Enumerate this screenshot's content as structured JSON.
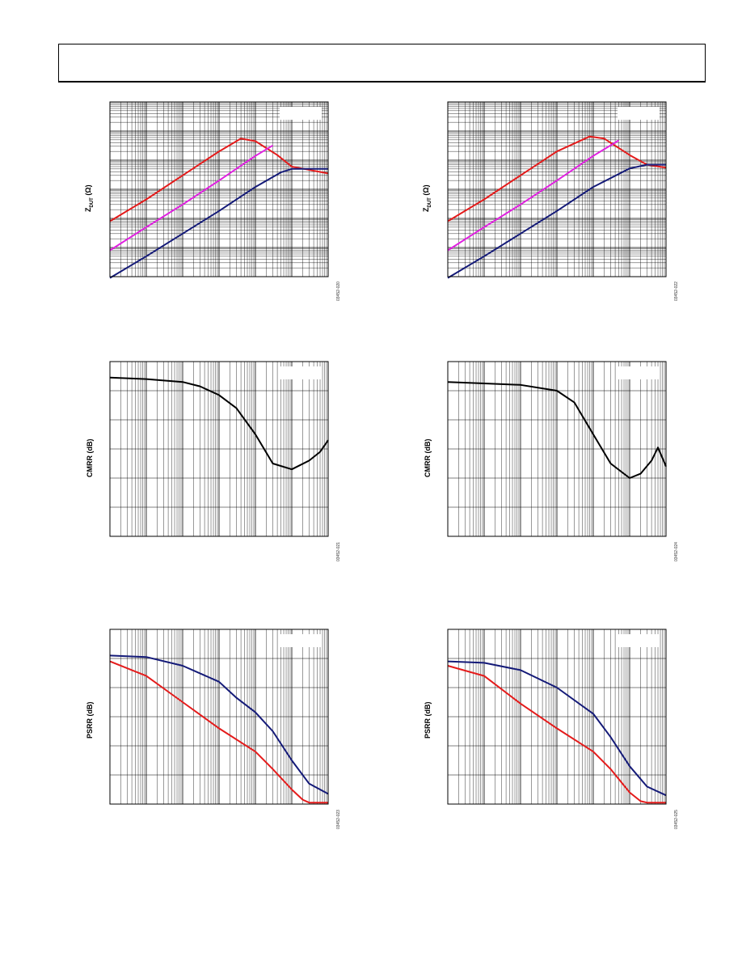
{
  "charts": [
    {
      "id": "zdut-left",
      "ylabel_main": "Z",
      "ylabel_sub": "DUT",
      "ylabel_unit": "(Ω)",
      "fig_id": "03452-020",
      "chart_data": {
        "type": "line",
        "xscale": "log",
        "yscale": "log",
        "xlim": [
          1,
          1000000
        ],
        "ylim": [
          0.1,
          100000
        ],
        "grid": true,
        "series": [
          {
            "color": "#e41b1b",
            "x": [
              1,
              10,
              100,
              1000,
              4000,
              10000,
              40000,
              100000,
              1000000
            ],
            "y": [
              8,
              45,
              300,
              2000,
              5500,
              4500,
              1500,
              600,
              350
            ]
          },
          {
            "color": "#e020e0",
            "x": [
              1,
              10,
              100,
              1000,
              10000,
              30000
            ],
            "y": [
              0.8,
              5,
              30,
              200,
              1400,
              3200
            ]
          },
          {
            "color": "#141a78",
            "x": [
              1,
              10,
              100,
              1000,
              10000,
              50000,
              100000,
              1000000
            ],
            "y": [
              0.09,
              0.5,
              3,
              18,
              120,
              380,
              500,
              500
            ]
          }
        ]
      }
    },
    {
      "id": "zdut-right",
      "ylabel_main": "Z",
      "ylabel_sub": "DUT",
      "ylabel_unit": "(Ω)",
      "fig_id": "03452-022",
      "chart_data": {
        "type": "line",
        "xscale": "log",
        "yscale": "log",
        "xlim": [
          1,
          1000000
        ],
        "ylim": [
          0.1,
          100000
        ],
        "grid": true,
        "series": [
          {
            "color": "#e41b1b",
            "x": [
              1,
              10,
              100,
              1000,
              8000,
              20000,
              100000,
              300000,
              1000000
            ],
            "y": [
              8,
              45,
              300,
              2000,
              6500,
              5500,
              1500,
              700,
              550
            ]
          },
          {
            "color": "#e020e0",
            "x": [
              1,
              10,
              100,
              1000,
              10000,
              50000
            ],
            "y": [
              0.8,
              5,
              30,
              200,
              1400,
              4800
            ]
          },
          {
            "color": "#141a78",
            "x": [
              1,
              10,
              100,
              1000,
              10000,
              100000,
              300000,
              1000000
            ],
            "y": [
              0.09,
              0.5,
              3,
              18,
              120,
              520,
              700,
              700
            ]
          }
        ]
      }
    },
    {
      "id": "cmrr-left",
      "ylabel_main": "CMRR (dB)",
      "ylabel_sub": "",
      "ylabel_unit": "",
      "fig_id": "03452-021",
      "chart_data": {
        "type": "line",
        "xscale": "log",
        "yscale": "linear",
        "xlim": [
          1,
          1000000
        ],
        "ylim": [
          0,
          120
        ],
        "grid": true,
        "series": [
          {
            "color": "#000000",
            "x": [
              1,
              10,
              100,
              300,
              1000,
              3000,
              10000,
              30000,
              100000,
              300000,
              600000,
              1000000
            ],
            "y": [
              109,
              108,
              106,
              103,
              97,
              88,
              70,
              50,
              46,
              52,
              58,
              66
            ]
          }
        ]
      }
    },
    {
      "id": "cmrr-right",
      "ylabel_main": "CMRR (dB)",
      "ylabel_sub": "",
      "ylabel_unit": "",
      "fig_id": "03452-024",
      "chart_data": {
        "type": "line",
        "xscale": "log",
        "yscale": "linear",
        "xlim": [
          1,
          1000000
        ],
        "ylim": [
          0,
          120
        ],
        "grid": true,
        "series": [
          {
            "color": "#000000",
            "x": [
              1,
              10,
              100,
              1000,
              3000,
              10000,
              30000,
              100000,
              200000,
              400000,
              600000,
              1000000
            ],
            "y": [
              106,
              105,
              104,
              100,
              92,
              70,
              50,
              40,
              43,
              52,
              61,
              48
            ]
          }
        ]
      }
    },
    {
      "id": "psrr-left",
      "ylabel_main": "PSRR (dB)",
      "ylabel_sub": "",
      "ylabel_unit": "",
      "fig_id": "03452-023",
      "chart_data": {
        "type": "line",
        "xscale": "log",
        "yscale": "linear",
        "xlim": [
          1,
          1000000
        ],
        "ylim": [
          0,
          120
        ],
        "grid": true,
        "series": [
          {
            "color": "#141a78",
            "x": [
              1,
              10,
              100,
              1000,
              3000,
              10000,
              30000,
              100000,
              300000,
              1000000
            ],
            "y": [
              102,
              101,
              95,
              84,
              73,
              63,
              50,
              30,
              14,
              7
            ]
          },
          {
            "color": "#e41b1b",
            "x": [
              1,
              10,
              100,
              1000,
              10000,
              30000,
              100000,
              200000,
              300000,
              1000000
            ],
            "y": [
              98,
              88,
              70,
              52,
              36,
              24,
              10,
              3,
              1,
              1
            ]
          }
        ]
      }
    },
    {
      "id": "psrr-right",
      "ylabel_main": "PSRR (dB)",
      "ylabel_sub": "",
      "ylabel_unit": "",
      "fig_id": "03452-025",
      "chart_data": {
        "type": "line",
        "xscale": "log",
        "yscale": "linear",
        "xlim": [
          1,
          1000000
        ],
        "ylim": [
          0,
          120
        ],
        "grid": true,
        "series": [
          {
            "color": "#141a78",
            "x": [
              1,
              10,
              100,
              1000,
              10000,
              30000,
              100000,
              300000,
              1000000
            ],
            "y": [
              98,
              97,
              92,
              80,
              62,
              46,
              26,
              12,
              6
            ]
          },
          {
            "color": "#e41b1b",
            "x": [
              1,
              10,
              100,
              1000,
              10000,
              30000,
              100000,
              200000,
              300000,
              1000000
            ],
            "y": [
              95,
              88,
              69,
              52,
              36,
              24,
              8,
              2,
              1,
              1
            ]
          }
        ]
      }
    }
  ]
}
